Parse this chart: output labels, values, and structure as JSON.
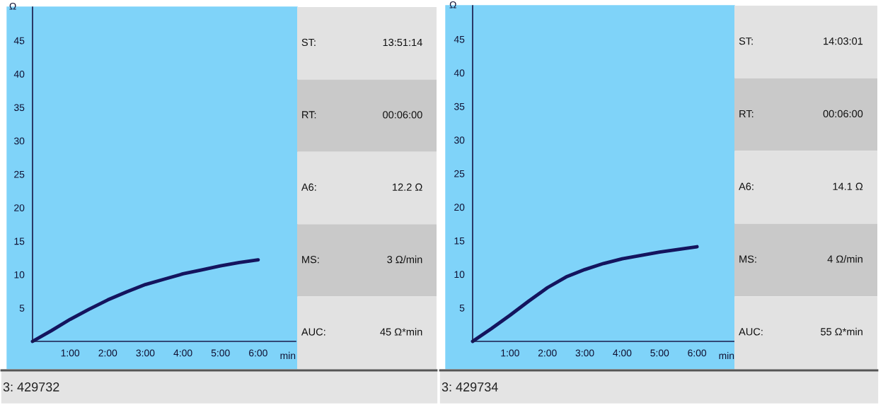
{
  "chart_data": [
    {
      "type": "line",
      "xlabel": "min",
      "ylabel": "Ω",
      "xlim": [
        0,
        7
      ],
      "ylim": [
        0,
        50
      ],
      "xticks": [
        {
          "value": 1,
          "label": "1:00"
        },
        {
          "value": 2,
          "label": "2:00"
        },
        {
          "value": 3,
          "label": "3:00"
        },
        {
          "value": 4,
          "label": "4:00"
        },
        {
          "value": 5,
          "label": "5:00"
        },
        {
          "value": 6,
          "label": "6:00"
        }
      ],
      "yticks": [
        5,
        10,
        15,
        20,
        25,
        30,
        35,
        40,
        45
      ],
      "x": [
        0,
        0.5,
        1,
        1.5,
        2,
        2.5,
        3,
        3.5,
        4,
        4.5,
        5,
        5.5,
        6
      ],
      "series": [
        {
          "color": "#14145e",
          "values": [
            0,
            1.6,
            3.3,
            4.8,
            6.2,
            7.4,
            8.5,
            9.3,
            10.1,
            10.7,
            11.3,
            11.8,
            12.2
          ]
        }
      ],
      "annotations": [
        "3: 429732"
      ]
    },
    {
      "type": "other",
      "annotations": [
        "ST:",
        "13:51:14",
        "RT:",
        "00:06:00",
        "A6:",
        "12.2 Ω",
        "MS:",
        "3 Ω/min",
        "AUC:",
        "45 Ω*min"
      ]
    },
    {
      "type": "line",
      "xlabel": "min",
      "ylabel": "Ω",
      "xlim": [
        0,
        7
      ],
      "ylim": [
        0,
        50
      ],
      "xticks": [
        {
          "value": 1,
          "label": "1:00"
        },
        {
          "value": 2,
          "label": "2:00"
        },
        {
          "value": 3,
          "label": "3:00"
        },
        {
          "value": 4,
          "label": "4:00"
        },
        {
          "value": 5,
          "label": "5:00"
        },
        {
          "value": 6,
          "label": "6:00"
        }
      ],
      "yticks": [
        5,
        10,
        15,
        20,
        25,
        30,
        35,
        40,
        45
      ],
      "x": [
        0,
        0.5,
        1,
        1.5,
        2,
        2.5,
        3,
        3.5,
        4,
        4.5,
        5,
        5.5,
        6
      ],
      "series": [
        {
          "color": "#14145e",
          "values": [
            0,
            1.9,
            3.9,
            6.0,
            8.0,
            9.6,
            10.7,
            11.6,
            12.3,
            12.8,
            13.3,
            13.7,
            14.1
          ]
        }
      ],
      "annotations": [
        "3: 429734"
      ]
    },
    {
      "type": "other",
      "annotations": [
        "ST:",
        "14:03:01",
        "RT:",
        "00:06:00",
        "A6:",
        "14.1 Ω",
        "MS:",
        "4 Ω/min",
        "AUC:",
        "55 Ω*min"
      ]
    }
  ]
}
